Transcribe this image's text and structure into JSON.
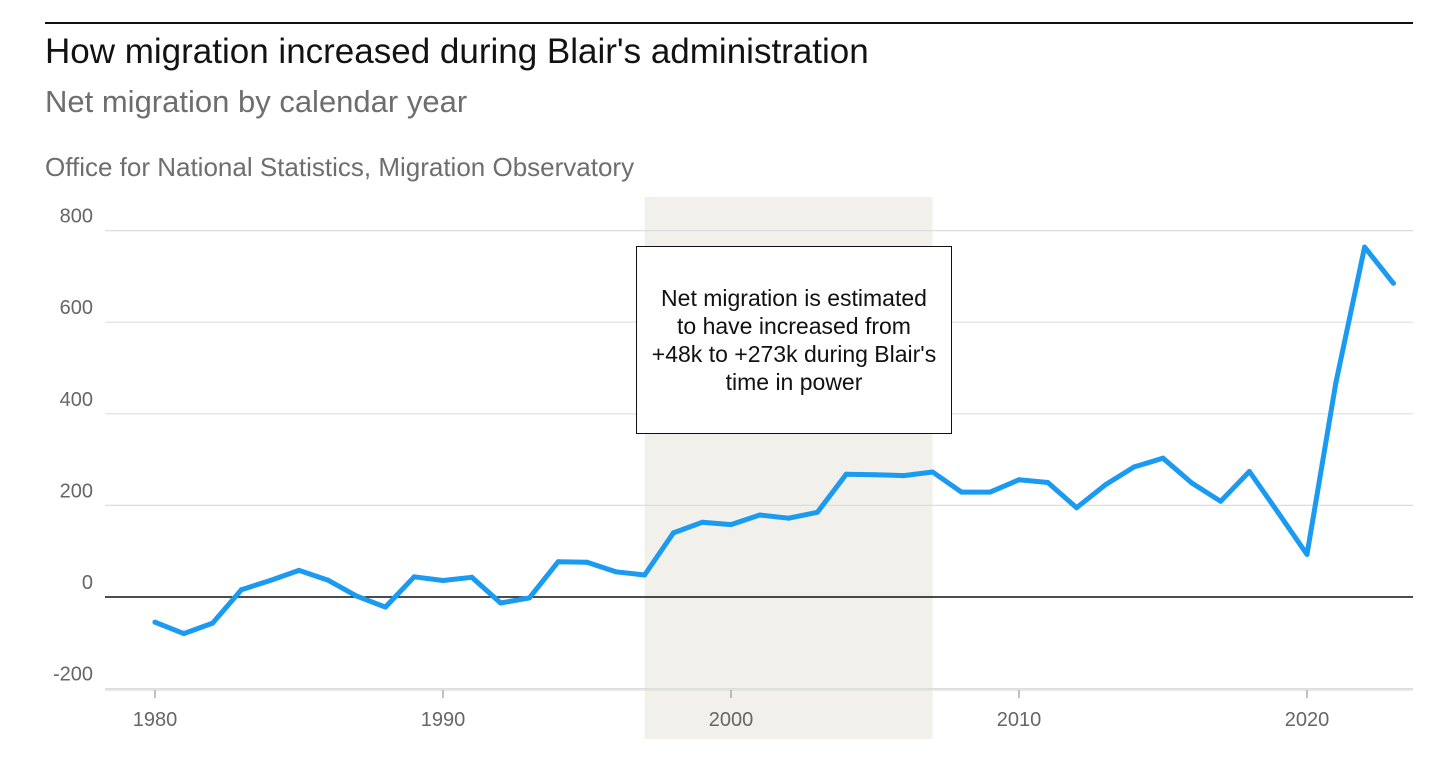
{
  "header": {
    "title": "How migration increased during Blair's administration",
    "subtitle": "Net migration by calendar year",
    "source": "Office for National Statistics, Migration Observatory"
  },
  "annotation": {
    "text": "Net migration is estimated to have increased from +48k to +273k during Blair's time in power"
  },
  "colors": {
    "line": "#1a9af0",
    "highlight": "#f1f0ea",
    "grid": "#dddddd",
    "zero_line": "#111111"
  },
  "chart_data": {
    "type": "line",
    "title": "How migration increased during Blair's administration",
    "subtitle": "Net migration by calendar year",
    "xlabel": "",
    "ylabel": "",
    "xlim": [
      1978,
      2024
    ],
    "ylim": [
      -200,
      850
    ],
    "x_ticks": [
      1980,
      1990,
      2000,
      2010,
      2020
    ],
    "y_ticks": [
      -200,
      0,
      200,
      400,
      600,
      800
    ],
    "grid": true,
    "highlight_range": [
      1997,
      2007
    ],
    "series": [
      {
        "x": [
          1980,
          1981,
          1982,
          1983,
          1984,
          1985,
          1986,
          1987,
          1988,
          1989,
          1990,
          1991,
          1992,
          1993,
          1994,
          1995,
          1996,
          1997,
          1998,
          1999,
          2000,
          2001,
          2002,
          2003,
          2004,
          2005,
          2006,
          2007,
          2008,
          2009,
          2010,
          2011,
          2012,
          2013,
          2014,
          2015,
          2016,
          2017,
          2018,
          2019,
          2020,
          2021,
          2022,
          2023
        ],
        "values": [
          -55,
          -80,
          -57,
          16,
          36,
          58,
          37,
          2,
          -22,
          44,
          36,
          43,
          -13,
          -2,
          77,
          76,
          55,
          48,
          140,
          163,
          158,
          179,
          172,
          185,
          268,
          267,
          265,
          273,
          229,
          229,
          256,
          250,
          195,
          245,
          284,
          303,
          249,
          209,
          274,
          184,
          93,
          467,
          764,
          685
        ]
      }
    ]
  }
}
